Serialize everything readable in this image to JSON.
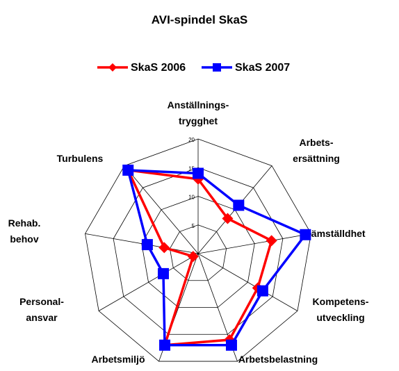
{
  "chart_data": {
    "type": "radar",
    "title": "AVI-spindel SkaS",
    "categories": [
      "Anställnings-\ntrygghet",
      "Arbets-\nersättning",
      "Jämställdhet",
      "Kompetens-\nutveckling",
      "Arbetsbelastning",
      "Arbetsmiljö",
      "Personal-\nansvar",
      "Rehab.\nbehov",
      "Turbulens"
    ],
    "series": [
      {
        "name": "SkaS 2006",
        "color": "#ff0000",
        "marker": "diamond",
        "values": [
          13,
          8,
          13,
          12,
          16,
          17,
          1,
          6,
          19
        ]
      },
      {
        "name": "SkaS 2007",
        "color": "#0000ff",
        "marker": "square",
        "values": [
          14,
          11,
          19,
          13,
          17,
          17,
          7,
          9,
          19
        ]
      }
    ],
    "rlim": [
      0,
      20
    ],
    "rticks": [
      5,
      10,
      15,
      20
    ],
    "grid": true,
    "legend": "top"
  }
}
